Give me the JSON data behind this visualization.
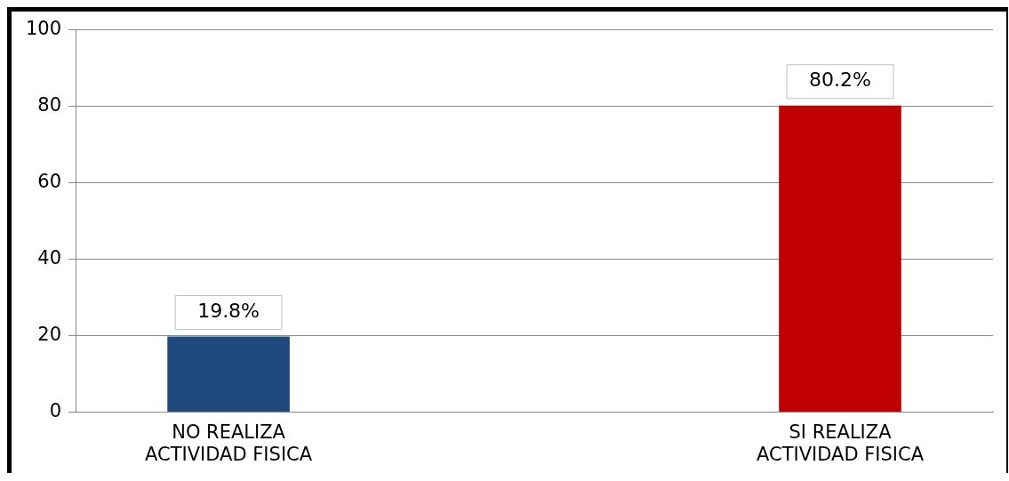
{
  "chart_data": {
    "type": "bar",
    "categories": [
      "NO REALIZA\nACTIVIDAD FISICA",
      null,
      "SI REALIZA\nACTIVIDAD FISICA"
    ],
    "values": [
      19.8,
      null,
      80.2
    ],
    "colors": [
      "#1f497d",
      null,
      "#c00000"
    ],
    "value_labels": [
      "19.8%",
      null,
      "80.2%"
    ],
    "ylim": [
      0,
      100
    ],
    "yticks": [
      0,
      20,
      40,
      60,
      80,
      100
    ],
    "grid": "y",
    "legend": false
  }
}
